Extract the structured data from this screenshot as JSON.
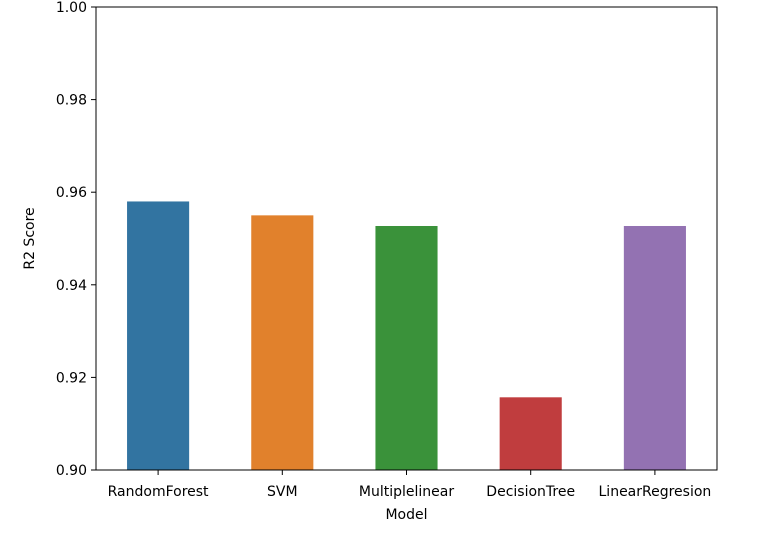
{
  "chart_data": {
    "type": "bar",
    "title": "",
    "xlabel": "Model",
    "ylabel": "R2 Score",
    "categories": [
      "RandomForest",
      "SVM",
      "Multiplelinear",
      "DecisionTree",
      "LinearRegresion"
    ],
    "values": [
      0.958,
      0.955,
      0.9527,
      0.9157,
      0.9527
    ],
    "colors": [
      "#3274a1",
      "#e1812c",
      "#3a923a",
      "#c03d3e",
      "#9372b2"
    ],
    "ylim": [
      0.9,
      1.0
    ],
    "yticks": [
      "0.90",
      "0.92",
      "0.94",
      "0.96",
      "0.98",
      "1.00"
    ],
    "grid": false,
    "legend": "none"
  }
}
